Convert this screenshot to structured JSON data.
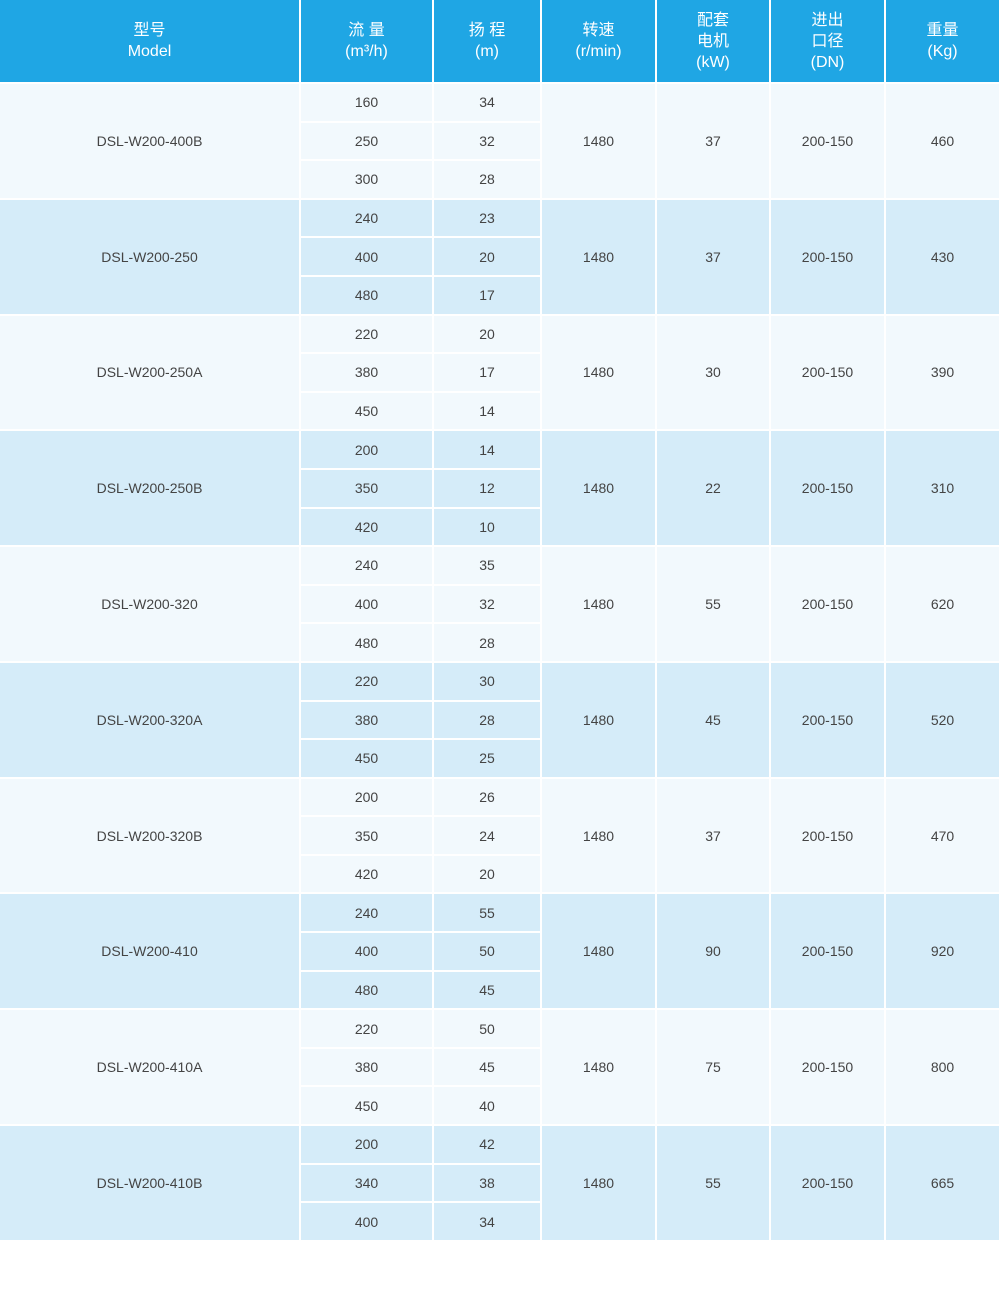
{
  "colors": {
    "header": "#1fa6e4",
    "row_light": "#f2f9fd",
    "row_dark": "#d5ecf9"
  },
  "headers": [
    [
      "型号",
      "Model"
    ],
    [
      "流 量",
      "(m³/h)"
    ],
    [
      "扬 程",
      "(m)"
    ],
    [
      "转速",
      "(r/min)"
    ],
    [
      "配套",
      "电机",
      "(kW)"
    ],
    [
      "进出",
      "口径",
      "(DN)"
    ],
    [
      "重量",
      "(Kg)"
    ]
  ],
  "rows": [
    {
      "model": "DSL-W200-400B",
      "flow": [
        "160",
        "250",
        "300"
      ],
      "head": [
        "34",
        "32",
        "28"
      ],
      "speed": "1480",
      "motor": "37",
      "dn": "200-150",
      "weight": "460"
    },
    {
      "model": "DSL-W200-250",
      "flow": [
        "240",
        "400",
        "480"
      ],
      "head": [
        "23",
        "20",
        "17"
      ],
      "speed": "1480",
      "motor": "37",
      "dn": "200-150",
      "weight": "430"
    },
    {
      "model": "DSL-W200-250A",
      "flow": [
        "220",
        "380",
        "450"
      ],
      "head": [
        "20",
        "17",
        "14"
      ],
      "speed": "1480",
      "motor": "30",
      "dn": "200-150",
      "weight": "390"
    },
    {
      "model": "DSL-W200-250B",
      "flow": [
        "200",
        "350",
        "420"
      ],
      "head": [
        "14",
        "12",
        "10"
      ],
      "speed": "1480",
      "motor": "22",
      "dn": "200-150",
      "weight": "310"
    },
    {
      "model": "DSL-W200-320",
      "flow": [
        "240",
        "400",
        "480"
      ],
      "head": [
        "35",
        "32",
        "28"
      ],
      "speed": "1480",
      "motor": "55",
      "dn": "200-150",
      "weight": "620"
    },
    {
      "model": "DSL-W200-320A",
      "flow": [
        "220",
        "380",
        "450"
      ],
      "head": [
        "30",
        "28",
        "25"
      ],
      "speed": "1480",
      "motor": "45",
      "dn": "200-150",
      "weight": "520"
    },
    {
      "model": "DSL-W200-320B",
      "flow": [
        "200",
        "350",
        "420"
      ],
      "head": [
        "26",
        "24",
        "20"
      ],
      "speed": "1480",
      "motor": "37",
      "dn": "200-150",
      "weight": "470"
    },
    {
      "model": "DSL-W200-410",
      "flow": [
        "240",
        "400",
        "480"
      ],
      "head": [
        "55",
        "50",
        "45"
      ],
      "speed": "1480",
      "motor": "90",
      "dn": "200-150",
      "weight": "920"
    },
    {
      "model": "DSL-W200-410A",
      "flow": [
        "220",
        "380",
        "450"
      ],
      "head": [
        "50",
        "45",
        "40"
      ],
      "speed": "1480",
      "motor": "75",
      "dn": "200-150",
      "weight": "800"
    },
    {
      "model": "DSL-W200-410B",
      "flow": [
        "200",
        "340",
        "400"
      ],
      "head": [
        "42",
        "38",
        "34"
      ],
      "speed": "1480",
      "motor": "55",
      "dn": "200-150",
      "weight": "665"
    }
  ]
}
